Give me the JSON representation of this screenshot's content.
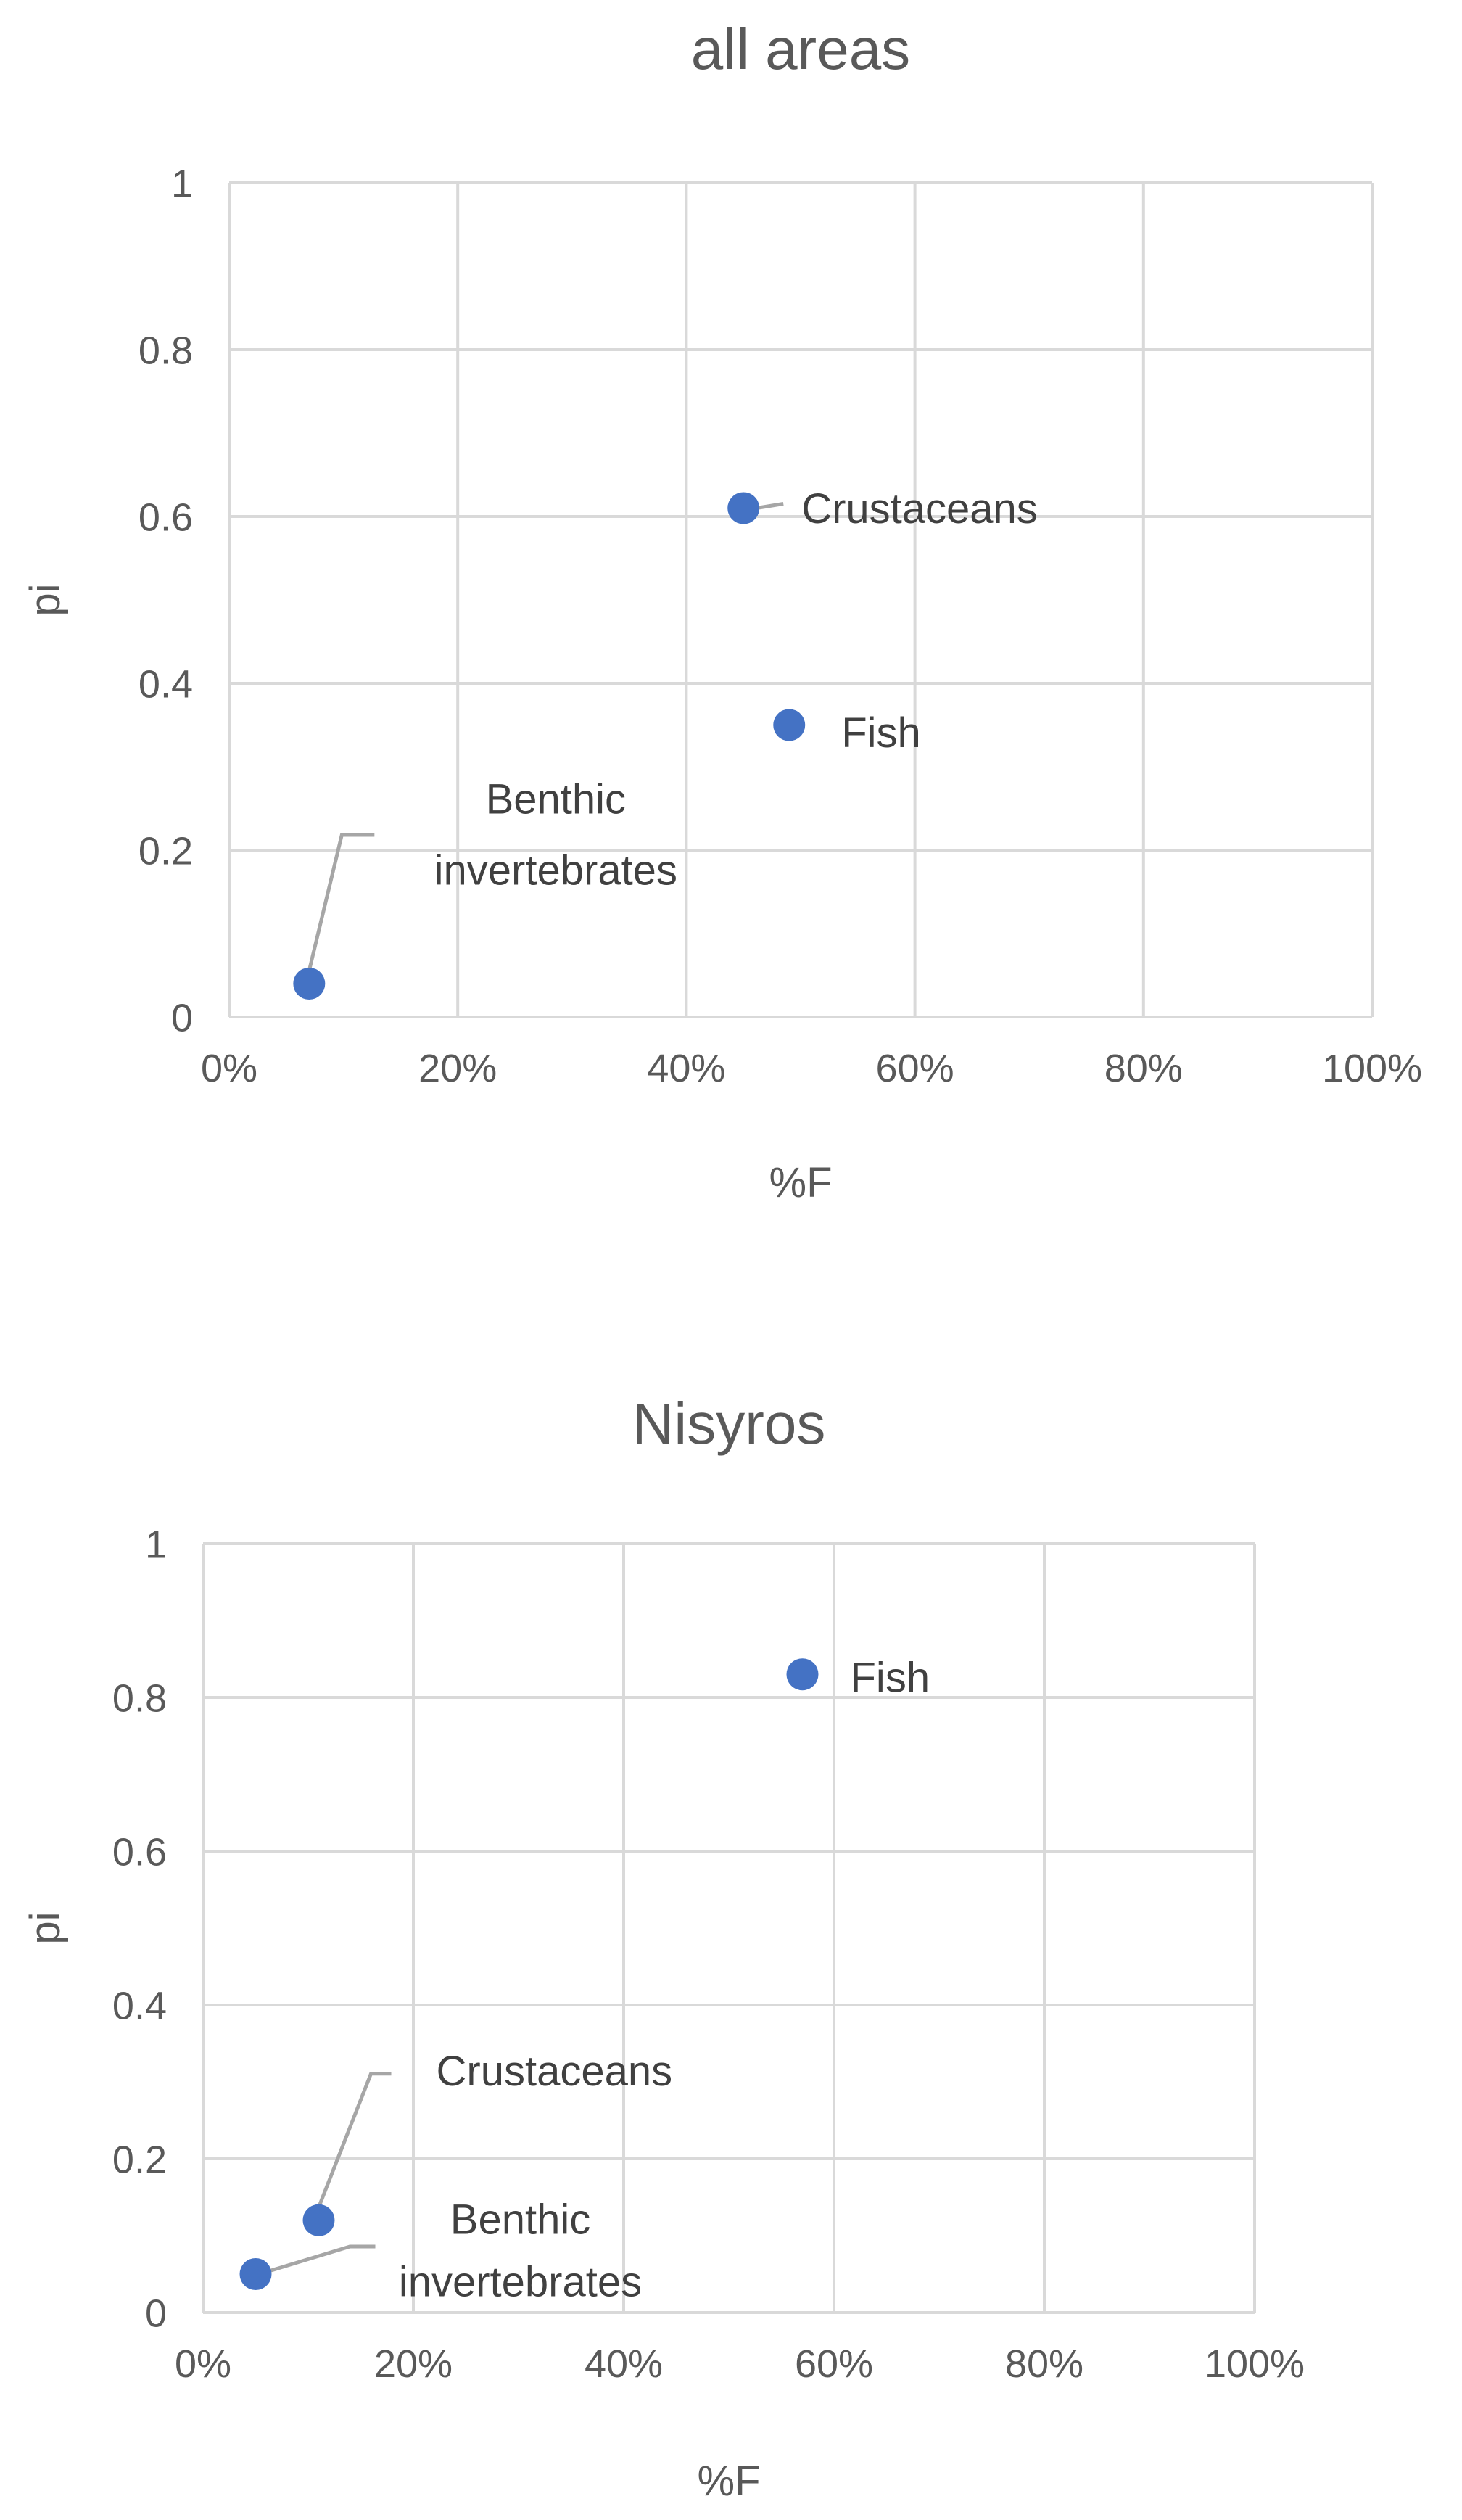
{
  "chart_data": [
    {
      "type": "scatter",
      "title": "all areas",
      "xlabel": "%F",
      "ylabel": "pi",
      "xlim": [
        0,
        1
      ],
      "ylim": [
        0,
        1
      ],
      "x_ticks": [
        "0%",
        "20%",
        "40%",
        "60%",
        "80%",
        "100%"
      ],
      "y_ticks": [
        "0",
        "0.2",
        "0.4",
        "0.6",
        "0.8",
        "1"
      ],
      "grid": true,
      "marker_color": "#4472C4",
      "points": [
        {
          "label": "Crustaceans",
          "x": 0.45,
          "y": 0.61
        },
        {
          "label": "Fish",
          "x": 0.49,
          "y": 0.35
        },
        {
          "label": "Benthic\ninvertebrates",
          "x": 0.07,
          "y": 0.04
        }
      ]
    },
    {
      "type": "scatter",
      "title": "Nisyros",
      "xlabel": "%F",
      "ylabel": "pi",
      "xlim": [
        0,
        1
      ],
      "ylim": [
        0,
        1
      ],
      "x_ticks": [
        "0%",
        "20%",
        "40%",
        "60%",
        "80%",
        "100%"
      ],
      "y_ticks": [
        "0",
        "0.2",
        "0.4",
        "0.6",
        "0.8",
        "1"
      ],
      "grid": true,
      "marker_color": "#4472C4",
      "points": [
        {
          "label": "Fish",
          "x": 0.57,
          "y": 0.83
        },
        {
          "label": "Crustaceans",
          "x": 0.11,
          "y": 0.12
        },
        {
          "label": "Benthic\ninvertebrates",
          "x": 0.05,
          "y": 0.05
        }
      ]
    }
  ]
}
